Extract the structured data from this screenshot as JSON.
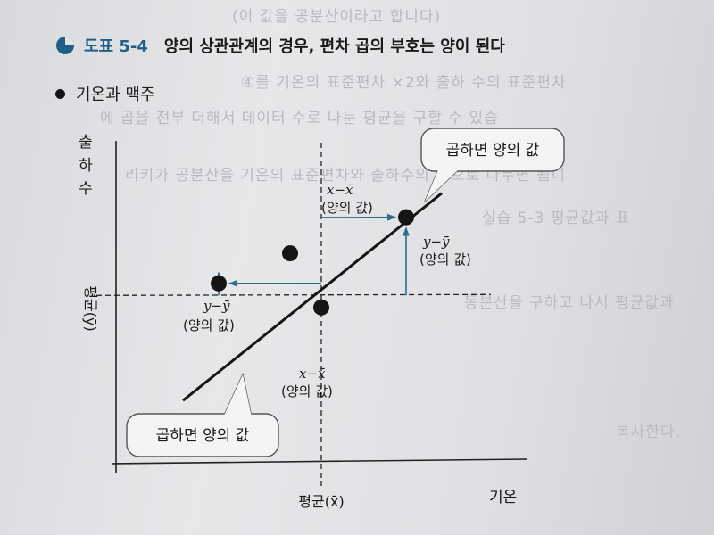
{
  "header": {
    "figure_number": "도표 5-4",
    "title": "양의 상관관계의 경우, 편차 곱의 부호는 양이 된다"
  },
  "subtitle": "기온과 맥주",
  "chart_data": {
    "type": "scatter",
    "x_label": "기온",
    "y_label": "출하수",
    "x_mean_label": "평균(x̄)",
    "y_mean_label": "평균(ȳ)",
    "points": [
      {
        "x": 6.5,
        "y": 8.2
      },
      {
        "x": 4.6,
        "y": 5.2
      },
      {
        "x": 3.9,
        "y": 7.0
      },
      {
        "x": 2.3,
        "y": 6.0
      }
    ],
    "trend_line": {
      "x": [
        1.5,
        7.3
      ],
      "y": [
        2.1,
        9.0
      ]
    },
    "x_mean": 4.6,
    "y_mean": 5.6,
    "annotations": {
      "dx_label": "x−x̄",
      "dy_label": "y−ȳ",
      "positive_value": "(양의 값)",
      "callout_text": "곱하면 양의 값"
    }
  },
  "background_bleed": [
    "(이 값을 공분산이라고 합니다)",
    "④를 기온의 표준편차 ×2와 출하 수의 표준편차",
    "에 곱을 전부 더해서 데이터 수로 나눈 평균을 구할 수 있습",
    "리키가 공분산을 기온의 표준편차와 출하수의 곱으로 나누면 됩니",
    "실습 5-3 평균값과 표",
    "동분산을 구하고 나서 평균값과",
    "복사한다."
  ]
}
